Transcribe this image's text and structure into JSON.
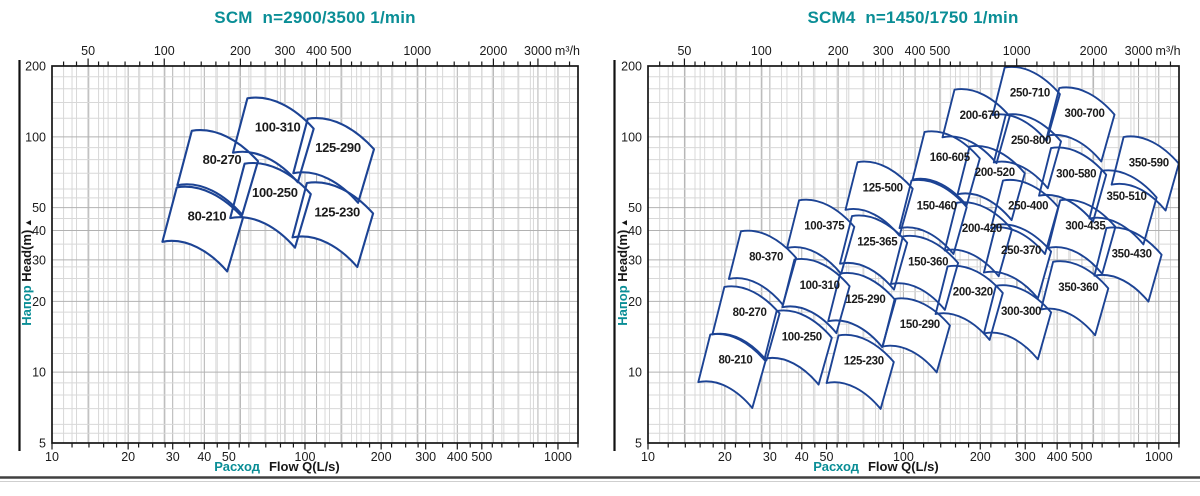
{
  "page": {
    "background": "#ffffff",
    "accent_teal": "#0a8e96",
    "curve_blue": "#1c4394",
    "grid_minor": "#d8d8d8",
    "grid_major": "#b2b2b2",
    "axis_color": "#161616"
  },
  "chart_data": [
    {
      "type": "pump-selection-map",
      "title": "SCM  n=2900/3500 1/min",
      "x_bottom": {
        "label_ru": "Расход",
        "label_en": "Flow Q(L/s)",
        "min": 10,
        "max": 1200,
        "ticks": [
          10,
          20,
          30,
          40,
          50,
          100,
          200,
          300,
          400,
          500,
          1000
        ]
      },
      "x_top": {
        "unit": "m³/h",
        "factor": 3.6,
        "ticks": [
          50,
          100,
          200,
          300,
          400,
          500,
          1000,
          2000,
          3000
        ]
      },
      "y": {
        "label_ru": "Напор",
        "label_en": "Head(m)",
        "arrow": "▲",
        "min": 5,
        "max": 200,
        "ticks": [
          200,
          100,
          50,
          40,
          30,
          20,
          10,
          5
        ]
      },
      "tiles": [
        {
          "model": "80-210",
          "q": 41,
          "h": 46
        },
        {
          "model": "80-270",
          "q": 47,
          "h": 80
        },
        {
          "model": "100-250",
          "q": 76,
          "h": 58
        },
        {
          "model": "100-310",
          "q": 78,
          "h": 110
        },
        {
          "model": "125-230",
          "q": 134,
          "h": 48
        },
        {
          "model": "125-290",
          "q": 135,
          "h": 90
        }
      ]
    },
    {
      "type": "pump-selection-map",
      "title": "SCM4  n=1450/1750 1/min",
      "x_bottom": {
        "label_ru": "Расход",
        "label_en": "Flow Q(L/s)",
        "min": 10,
        "max": 1200,
        "ticks": [
          10,
          20,
          30,
          40,
          50,
          100,
          200,
          300,
          400,
          500,
          1000
        ]
      },
      "x_top": {
        "unit": "m³/h",
        "factor": 3.6,
        "ticks": [
          50,
          100,
          200,
          300,
          400,
          500,
          1000,
          2000,
          3000
        ]
      },
      "y": {
        "label_ru": "Напор",
        "label_en": "Head(m)",
        "arrow": "▲",
        "min": 5,
        "max": 200,
        "ticks": [
          200,
          100,
          50,
          40,
          30,
          20,
          10,
          5
        ]
      },
      "tiles": [
        {
          "model": "80-210",
          "q": 22,
          "h": 11.3
        },
        {
          "model": "80-270",
          "q": 25,
          "h": 18
        },
        {
          "model": "80-370",
          "q": 29,
          "h": 31
        },
        {
          "model": "100-250",
          "q": 40,
          "h": 14.2
        },
        {
          "model": "100-310",
          "q": 47,
          "h": 23.5
        },
        {
          "model": "100-375",
          "q": 49,
          "h": 42
        },
        {
          "model": "125-230",
          "q": 70,
          "h": 11.2
        },
        {
          "model": "125-290",
          "q": 71,
          "h": 20.5
        },
        {
          "model": "125-365",
          "q": 79,
          "h": 36
        },
        {
          "model": "125-500",
          "q": 83,
          "h": 61
        },
        {
          "model": "150-290",
          "q": 116,
          "h": 16
        },
        {
          "model": "150-360",
          "q": 125,
          "h": 29.5
        },
        {
          "model": "150-460",
          "q": 135,
          "h": 51
        },
        {
          "model": "160-605",
          "q": 152,
          "h": 82
        },
        {
          "model": "200-320",
          "q": 187,
          "h": 22
        },
        {
          "model": "200-420",
          "q": 203,
          "h": 41
        },
        {
          "model": "200-520",
          "q": 228,
          "h": 71
        },
        {
          "model": "200-670",
          "q": 199,
          "h": 124
        },
        {
          "model": "250-370",
          "q": 289,
          "h": 33
        },
        {
          "model": "250-400",
          "q": 308,
          "h": 51
        },
        {
          "model": "250-710",
          "q": 313,
          "h": 154
        },
        {
          "model": "250-800",
          "q": 316,
          "h": 97
        },
        {
          "model": "300-300",
          "q": 289,
          "h": 18.2
        },
        {
          "model": "300-435",
          "q": 516,
          "h": 42
        },
        {
          "model": "300-580",
          "q": 475,
          "h": 70
        },
        {
          "model": "300-700",
          "q": 512,
          "h": 126
        },
        {
          "model": "350-360",
          "q": 484,
          "h": 23
        },
        {
          "model": "350-430",
          "q": 783,
          "h": 32
        },
        {
          "model": "350-510",
          "q": 748,
          "h": 56
        },
        {
          "model": "350-590",
          "q": 914,
          "h": 78
        }
      ]
    }
  ]
}
